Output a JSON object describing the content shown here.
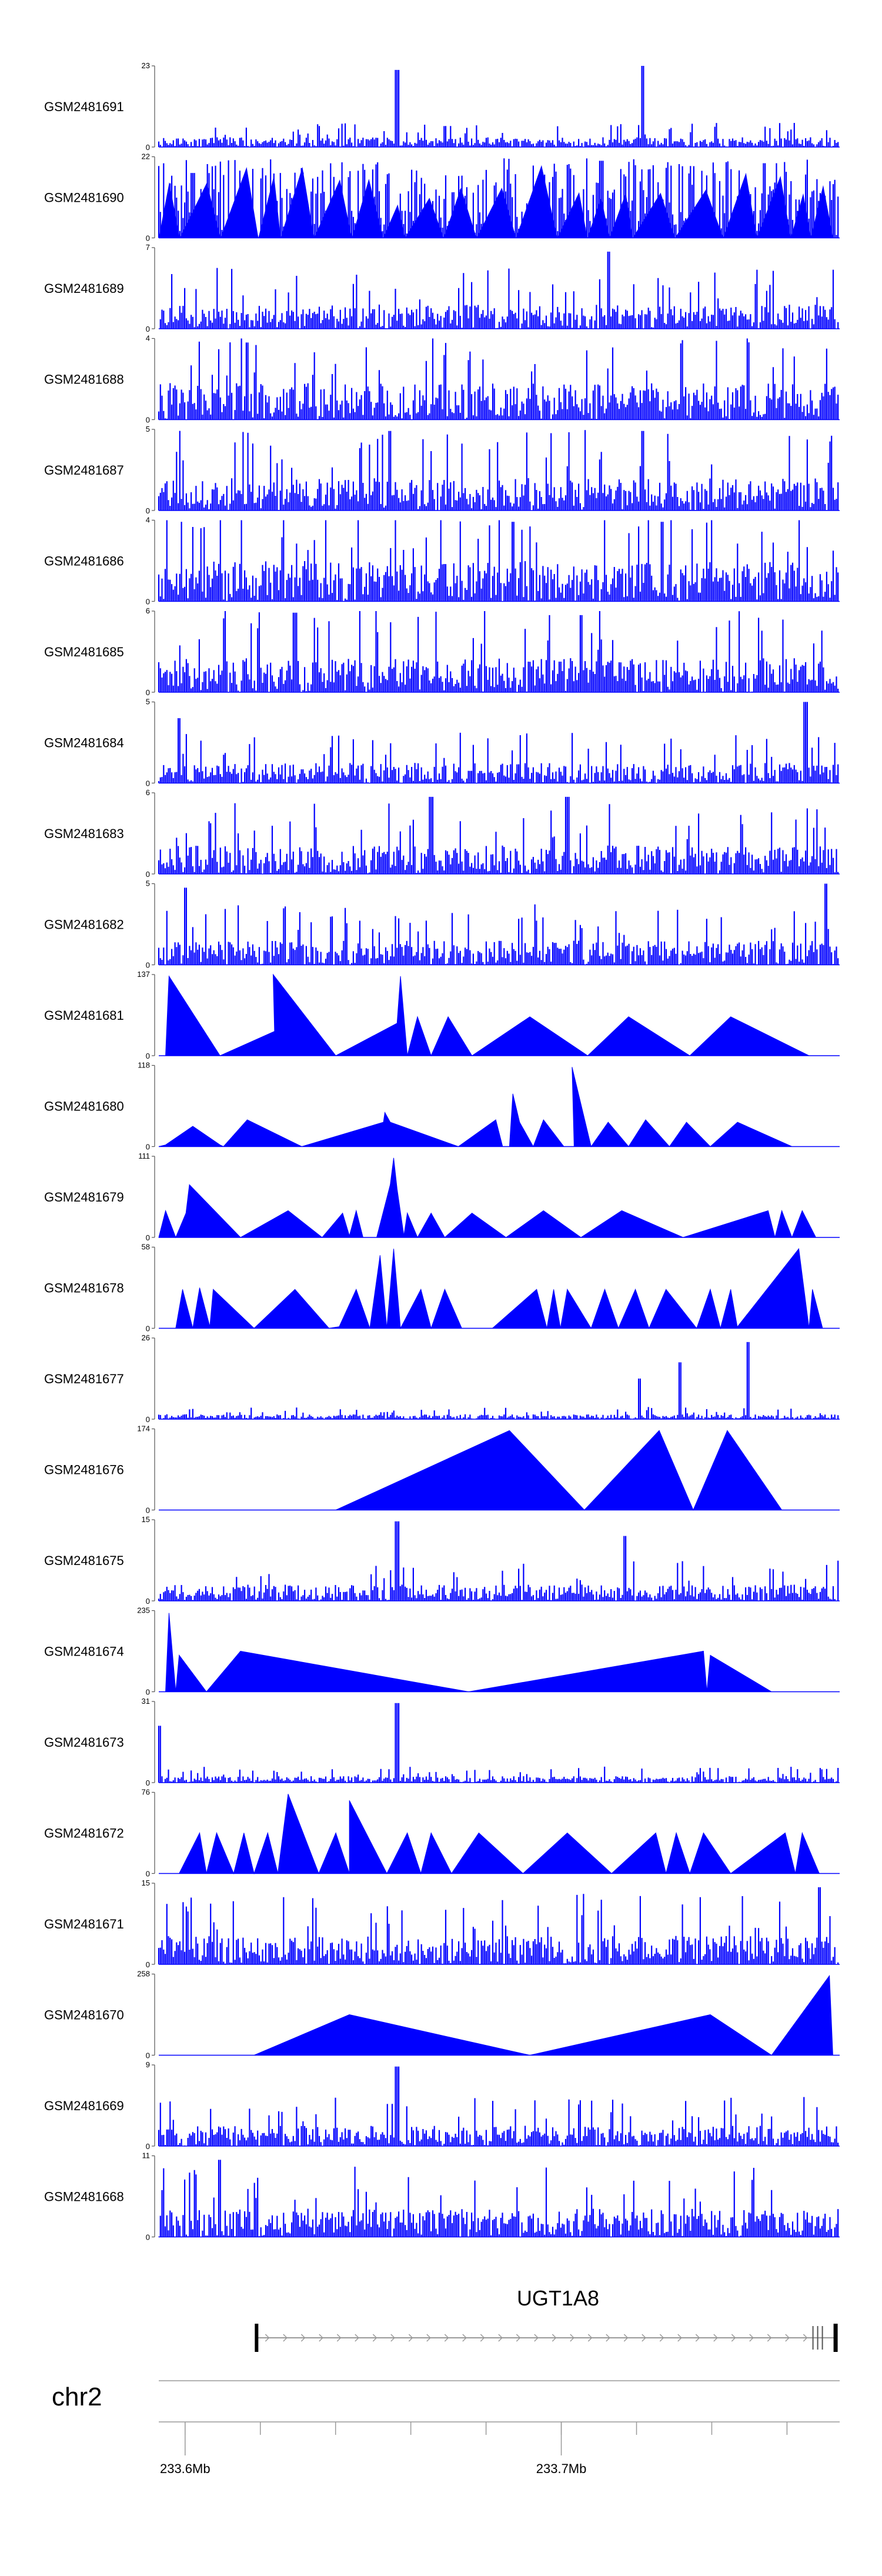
{
  "chart_data": {
    "type": "area",
    "title": "",
    "color": "#0000ff",
    "chromosome": "chr2",
    "gene": {
      "name": "UGT1A8",
      "start_mb": 233.619,
      "end_mb": 233.773,
      "strand": "+"
    },
    "xaxis": {
      "range_mb": [
        233.593,
        233.774
      ],
      "ticks_mb": [
        233.6,
        233.62,
        233.64,
        233.66,
        233.68,
        233.7,
        233.72,
        233.74,
        233.76
      ],
      "tick_labels": [
        {
          "value_mb": 233.6,
          "label": "233.6Mb"
        },
        {
          "value_mb": 233.7,
          "label": "233.7Mb"
        }
      ]
    },
    "series": [
      {
        "name": "GSM2481691",
        "ymax": 23,
        "ymin": 0,
        "style": "dense",
        "level": 0.12,
        "seed": 1,
        "peaks": [
          [
            0.35,
            0.95
          ],
          [
            0.71,
            1.0
          ]
        ]
      },
      {
        "name": "GSM2481690",
        "ymax": 22,
        "ymin": 0,
        "style": "dense_tri",
        "level": 0.35,
        "seed": 2,
        "peaks": [
          [
            0.05,
            0.8
          ],
          [
            0.65,
            0.95
          ],
          [
            0.89,
            0.92
          ]
        ]
      },
      {
        "name": "GSM2481689",
        "ymax": 7,
        "ymin": 0,
        "style": "dense",
        "level": 0.3,
        "seed": 3,
        "peaks": [
          [
            0.66,
            0.95
          ]
        ]
      },
      {
        "name": "GSM2481688",
        "ymax": 4,
        "ymin": 0,
        "style": "dense",
        "level": 0.45,
        "seed": 4,
        "peaks": [
          [
            0.13,
            0.95
          ]
        ]
      },
      {
        "name": "GSM2481687",
        "ymax": 5,
        "ymin": 0,
        "style": "dense",
        "level": 0.4,
        "seed": 5,
        "peaks": [
          [
            0.34,
            0.98
          ],
          [
            0.71,
            0.98
          ]
        ]
      },
      {
        "name": "GSM2481686",
        "ymax": 4,
        "ymin": 0,
        "style": "dense",
        "level": 0.5,
        "seed": 6,
        "peaks": [
          [
            0.52,
            0.98
          ],
          [
            0.74,
            0.98
          ]
        ]
      },
      {
        "name": "GSM2481685",
        "ymax": 6,
        "ymin": 0,
        "style": "dense",
        "level": 0.42,
        "seed": 7,
        "peaks": [
          [
            0.2,
            0.98
          ],
          [
            0.62,
            0.95
          ]
        ]
      },
      {
        "name": "GSM2481684",
        "ymax": 5,
        "ymin": 0,
        "style": "dense",
        "level": 0.25,
        "seed": 8,
        "peaks": [
          [
            0.95,
            1.0
          ],
          [
            0.03,
            0.8
          ]
        ]
      },
      {
        "name": "GSM2481683",
        "ymax": 6,
        "ymin": 0,
        "style": "dense",
        "level": 0.35,
        "seed": 9,
        "peaks": [
          [
            0.4,
            0.95
          ],
          [
            0.6,
            0.95
          ]
        ]
      },
      {
        "name": "GSM2481682",
        "ymax": 5,
        "ymin": 0,
        "style": "dense",
        "level": 0.3,
        "seed": 10,
        "peaks": [
          [
            0.98,
            1.0
          ],
          [
            0.04,
            0.95
          ]
        ]
      },
      {
        "name": "GSM2481681",
        "ymax": 137,
        "ymin": 0,
        "style": "tri",
        "points": [
          [
            0.01,
            0
          ],
          [
            0.015,
            0.98
          ],
          [
            0.09,
            0
          ],
          [
            0.17,
            0.3
          ],
          [
            0.168,
            1.0
          ],
          [
            0.26,
            0
          ],
          [
            0.35,
            0.4
          ],
          [
            0.355,
            0.98
          ],
          [
            0.365,
            0
          ],
          [
            0.38,
            0.48
          ],
          [
            0.4,
            0
          ],
          [
            0.425,
            0.48
          ],
          [
            0.46,
            0
          ],
          [
            0.545,
            0.48
          ],
          [
            0.63,
            0
          ],
          [
            0.69,
            0.48
          ],
          [
            0.78,
            0
          ],
          [
            0.84,
            0.48
          ],
          [
            0.955,
            0
          ]
        ]
      },
      {
        "name": "GSM2481680",
        "ymax": 118,
        "ymin": 0,
        "style": "tri",
        "points": [
          [
            0.0,
            0
          ],
          [
            0.01,
            0.02
          ],
          [
            0.05,
            0.25
          ],
          [
            0.09,
            0.02
          ],
          [
            0.095,
            0
          ],
          [
            0.13,
            0.33
          ],
          [
            0.21,
            0
          ],
          [
            0.33,
            0.3
          ],
          [
            0.332,
            0.42
          ],
          [
            0.34,
            0.3
          ],
          [
            0.44,
            0
          ],
          [
            0.495,
            0.33
          ],
          [
            0.505,
            0
          ],
          [
            0.515,
            0
          ],
          [
            0.52,
            0.65
          ],
          [
            0.53,
            0.3
          ],
          [
            0.55,
            0
          ],
          [
            0.565,
            0.33
          ],
          [
            0.595,
            0
          ],
          [
            0.61,
            0
          ],
          [
            0.607,
            0.98
          ],
          [
            0.635,
            0
          ],
          [
            0.66,
            0.3
          ],
          [
            0.69,
            0
          ],
          [
            0.715,
            0.33
          ],
          [
            0.75,
            0
          ],
          [
            0.775,
            0.3
          ],
          [
            0.81,
            0
          ],
          [
            0.85,
            0.3
          ],
          [
            0.93,
            0
          ]
        ]
      },
      {
        "name": "GSM2481679",
        "ymax": 111,
        "ymin": 0,
        "style": "tri",
        "points": [
          [
            0.0,
            0
          ],
          [
            0.01,
            0.33
          ],
          [
            0.025,
            0
          ],
          [
            0.04,
            0.3
          ],
          [
            0.045,
            0.65
          ],
          [
            0.12,
            0
          ],
          [
            0.19,
            0.33
          ],
          [
            0.24,
            0
          ],
          [
            0.27,
            0.3
          ],
          [
            0.28,
            0.02
          ],
          [
            0.29,
            0.33
          ],
          [
            0.3,
            0
          ],
          [
            0.32,
            0
          ],
          [
            0.34,
            0.65
          ],
          [
            0.345,
            0.98
          ],
          [
            0.35,
            0.6
          ],
          [
            0.36,
            0.02
          ],
          [
            0.365,
            0.3
          ],
          [
            0.38,
            0
          ],
          [
            0.4,
            0.3
          ],
          [
            0.42,
            0
          ],
          [
            0.46,
            0.3
          ],
          [
            0.51,
            0
          ],
          [
            0.565,
            0.33
          ],
          [
            0.62,
            0
          ],
          [
            0.68,
            0.33
          ],
          [
            0.77,
            0
          ],
          [
            0.895,
            0.33
          ],
          [
            0.905,
            0
          ],
          [
            0.915,
            0.33
          ],
          [
            0.93,
            0
          ],
          [
            0.945,
            0.33
          ],
          [
            0.965,
            0
          ]
        ]
      },
      {
        "name": "GSM2481678",
        "ymax": 58,
        "ymin": 0,
        "style": "tri",
        "points": [
          [
            0.0,
            0
          ],
          [
            0.025,
            0
          ],
          [
            0.035,
            0.48
          ],
          [
            0.05,
            0
          ],
          [
            0.06,
            0.5
          ],
          [
            0.075,
            0.02
          ],
          [
            0.08,
            0.48
          ],
          [
            0.14,
            0
          ],
          [
            0.2,
            0.48
          ],
          [
            0.25,
            0
          ],
          [
            0.265,
            0.02
          ],
          [
            0.29,
            0.48
          ],
          [
            0.31,
            0
          ],
          [
            0.325,
            0.9
          ],
          [
            0.335,
            0
          ],
          [
            0.345,
            0.98
          ],
          [
            0.355,
            0
          ],
          [
            0.385,
            0.48
          ],
          [
            0.4,
            0
          ],
          [
            0.42,
            0.48
          ],
          [
            0.445,
            0
          ],
          [
            0.49,
            0
          ],
          [
            0.555,
            0.48
          ],
          [
            0.57,
            0
          ],
          [
            0.58,
            0.48
          ],
          [
            0.59,
            0
          ],
          [
            0.6,
            0.48
          ],
          [
            0.635,
            0
          ],
          [
            0.655,
            0.48
          ],
          [
            0.675,
            0
          ],
          [
            0.7,
            0.48
          ],
          [
            0.72,
            0
          ],
          [
            0.745,
            0.48
          ],
          [
            0.79,
            0
          ],
          [
            0.81,
            0.48
          ],
          [
            0.825,
            0
          ],
          [
            0.84,
            0.48
          ],
          [
            0.85,
            0
          ],
          [
            0.85,
            0.02
          ],
          [
            0.94,
            0.98
          ],
          [
            0.955,
            0
          ],
          [
            0.96,
            0.48
          ],
          [
            0.975,
            0
          ]
        ]
      },
      {
        "name": "GSM2481677",
        "ymax": 26,
        "ymin": 0,
        "style": "dense",
        "level": 0.06,
        "seed": 11,
        "peaks": [
          [
            0.705,
            0.5
          ],
          [
            0.765,
            0.7
          ],
          [
            0.865,
            0.95
          ]
        ]
      },
      {
        "name": "GSM2481676",
        "ymax": 174,
        "ymin": 0,
        "style": "tri",
        "points": [
          [
            0.0,
            0
          ],
          [
            0.26,
            0
          ],
          [
            0.515,
            0.98
          ],
          [
            0.625,
            0
          ],
          [
            0.735,
            0.98
          ],
          [
            0.785,
            0
          ],
          [
            0.835,
            0.98
          ],
          [
            0.915,
            0
          ]
        ]
      },
      {
        "name": "GSM2481675",
        "ymax": 15,
        "ymin": 0,
        "style": "dense",
        "level": 0.2,
        "seed": 12,
        "peaks": [
          [
            0.35,
            0.98
          ],
          [
            0.685,
            0.8
          ]
        ]
      },
      {
        "name": "GSM2481674",
        "ymax": 235,
        "ymin": 0,
        "style": "tri",
        "points": [
          [
            0.0,
            0
          ],
          [
            0.01,
            0
          ],
          [
            0.015,
            0.97
          ],
          [
            0.025,
            0
          ],
          [
            0.03,
            0.45
          ],
          [
            0.07,
            0
          ],
          [
            0.12,
            0.5
          ],
          [
            0.455,
            0
          ],
          [
            0.8,
            0.5
          ],
          [
            0.805,
            0
          ],
          [
            0.81,
            0.45
          ],
          [
            0.9,
            0
          ]
        ]
      },
      {
        "name": "GSM2481673",
        "ymax": 31,
        "ymin": 0,
        "style": "dense",
        "level": 0.08,
        "seed": 13,
        "peaks": [
          [
            0.0,
            0.7
          ],
          [
            0.35,
            0.98
          ]
        ]
      },
      {
        "name": "GSM2481672",
        "ymax": 76,
        "ymin": 0,
        "style": "tri",
        "points": [
          [
            0.0,
            0
          ],
          [
            0.03,
            0
          ],
          [
            0.06,
            0.5
          ],
          [
            0.07,
            0
          ],
          [
            0.085,
            0.5
          ],
          [
            0.11,
            0
          ],
          [
            0.125,
            0.5
          ],
          [
            0.14,
            0
          ],
          [
            0.16,
            0.5
          ],
          [
            0.175,
            0
          ],
          [
            0.19,
            0.98
          ],
          [
            0.235,
            0
          ],
          [
            0.26,
            0.5
          ],
          [
            0.28,
            0
          ],
          [
            0.28,
            0.9
          ],
          [
            0.335,
            0
          ],
          [
            0.365,
            0.5
          ],
          [
            0.385,
            0
          ],
          [
            0.4,
            0.5
          ],
          [
            0.43,
            0
          ],
          [
            0.47,
            0.5
          ],
          [
            0.535,
            0
          ],
          [
            0.6,
            0.5
          ],
          [
            0.665,
            0
          ],
          [
            0.73,
            0.5
          ],
          [
            0.745,
            0
          ],
          [
            0.76,
            0.5
          ],
          [
            0.78,
            0
          ],
          [
            0.8,
            0.5
          ],
          [
            0.84,
            0
          ],
          [
            0.92,
            0.5
          ],
          [
            0.935,
            0
          ],
          [
            0.945,
            0.5
          ],
          [
            0.97,
            0
          ]
        ]
      },
      {
        "name": "GSM2481671",
        "ymax": 15,
        "ymin": 0,
        "style": "dense",
        "level": 0.35,
        "seed": 14,
        "peaks": [
          [
            0.97,
            0.95
          ]
        ]
      },
      {
        "name": "GSM2481670",
        "ymax": 258,
        "ymin": 0,
        "style": "tri",
        "points": [
          [
            0.0,
            0
          ],
          [
            0.14,
            0
          ],
          [
            0.28,
            0.5
          ],
          [
            0.545,
            0
          ],
          [
            0.81,
            0.5
          ],
          [
            0.9,
            0
          ],
          [
            0.985,
            0.98
          ],
          [
            0.99,
            0
          ]
        ]
      },
      {
        "name": "GSM2481669",
        "ymax": 9,
        "ymin": 0,
        "style": "dense",
        "level": 0.25,
        "seed": 15,
        "peaks": [
          [
            0.35,
            0.98
          ]
        ]
      },
      {
        "name": "GSM2481668",
        "ymax": 11,
        "ymin": 0,
        "style": "dense",
        "level": 0.35,
        "seed": 16,
        "peaks": [
          [
            0.09,
            0.95
          ]
        ]
      }
    ]
  }
}
